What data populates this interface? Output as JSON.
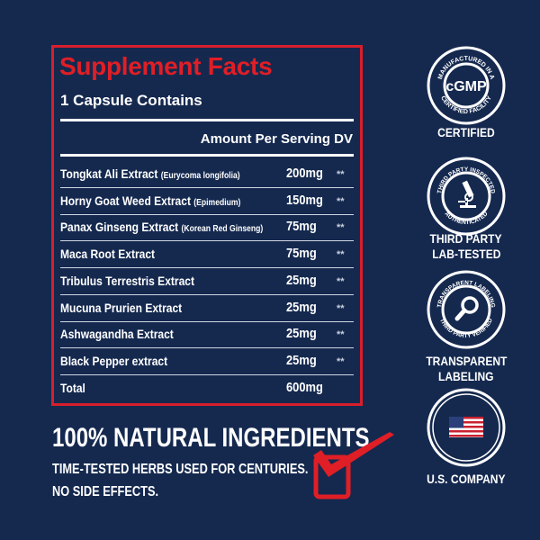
{
  "facts": {
    "title": "Supplement Facts",
    "serving": "1 Capsule Contains",
    "header": "Amount Per Serving DV",
    "rows": [
      {
        "name": "Tongkat Ali Extract",
        "detail": "(Eurycoma longifolia)",
        "amount": "200mg",
        "dv": "**"
      },
      {
        "name": "Horny Goat Weed Extract",
        "detail": "(Epimedium)",
        "amount": "150mg",
        "dv": "**"
      },
      {
        "name": "Panax Ginseng Extract",
        "detail": "(Korean Red Ginseng)",
        "amount": "75mg",
        "dv": "**"
      },
      {
        "name": "Maca Root Extract",
        "detail": "",
        "amount": "75mg",
        "dv": "**"
      },
      {
        "name": "Tribulus Terrestris Extract",
        "detail": "",
        "amount": "25mg",
        "dv": "**"
      },
      {
        "name": "Mucuna Prurien Extract",
        "detail": "",
        "amount": "25mg",
        "dv": "**"
      },
      {
        "name": "Ashwagandha Extract",
        "detail": "",
        "amount": "25mg",
        "dv": "**"
      },
      {
        "name": "Black Pepper extract",
        "detail": "",
        "amount": "25mg",
        "dv": "**"
      }
    ],
    "total": {
      "name": "Total",
      "amount": "600mg"
    }
  },
  "badges": [
    {
      "icon": "cgmp-seal-icon",
      "center": "cGMP",
      "top_arc": "MANUFACTURED IN A",
      "bottom_arc": "CERTIFIED FACILITY",
      "label1": "CERTIFIED",
      "label2": ""
    },
    {
      "icon": "microscope-icon",
      "top_arc": "THIRD PARTY INSPECTED",
      "bottom_arc": "AUTHENTICATED",
      "label1": "THIRD PARTY",
      "label2": "LAB-TESTED"
    },
    {
      "icon": "magnifier-icon",
      "top_arc": "TRANSPARENT LABELING",
      "bottom_arc": "THIRD PARTY VERIFIED",
      "label1": "TRANSPARENT",
      "label2": "LABELING"
    },
    {
      "icon": "us-flag-icon",
      "label1": "U.S. COMPANY",
      "label2": ""
    }
  ],
  "promo": {
    "headline": "100% NATURAL INGREDIENTS",
    "line1": "TIME-TESTED HERBS USED FOR CENTURIES.",
    "line2": "NO SIDE EFFECTS.",
    "check_icon": "red-checkbox-icon"
  },
  "colors": {
    "background": "#15294f",
    "accent": "#e01e26",
    "text": "#ffffff"
  }
}
